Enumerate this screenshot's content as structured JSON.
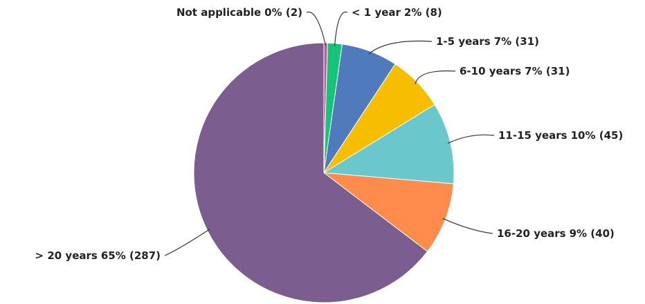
{
  "chart_data": {
    "type": "pie",
    "categories": [
      "Not applicable",
      "< 1 year",
      "1-5 years",
      "6-10 years",
      "11-15 years",
      "16-20 years",
      "> 20 years"
    ],
    "values": [
      2,
      8,
      31,
      31,
      45,
      40,
      287
    ],
    "value_labels": [
      "0% (2)",
      "2% (8)",
      "7% (31)",
      "7% (31)",
      "10% (45)",
      "9% (40)",
      "65% (287)"
    ],
    "colors": [
      "#c45b9a",
      "#17c27a",
      "#4f7bbd",
      "#f7bd00",
      "#6ac8cd",
      "#ff8b4d",
      "#7b5e8f"
    ]
  }
}
